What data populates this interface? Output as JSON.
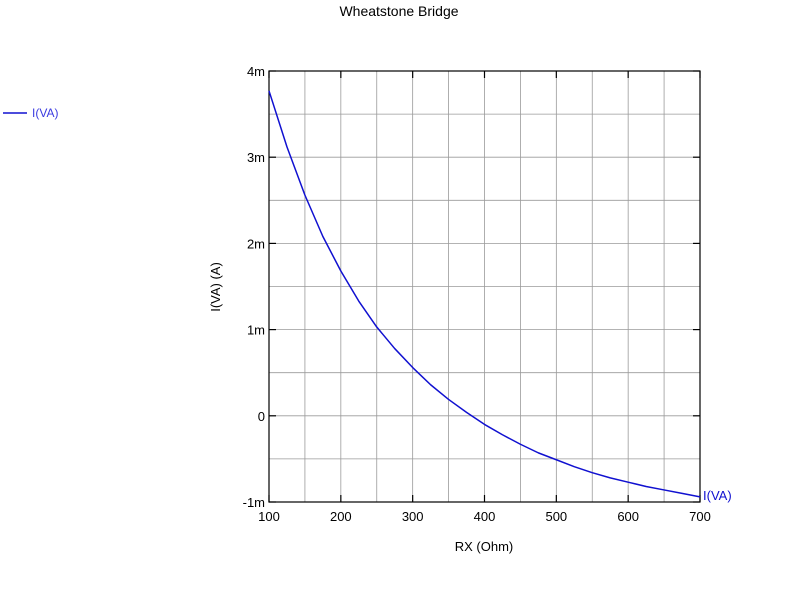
{
  "chart_data": {
    "type": "line",
    "title": "Wheatstone Bridge",
    "xlabel": "RX  (Ohm)",
    "ylabel": "I(VA)  (A)",
    "xlim": [
      100,
      700
    ],
    "ylim": [
      -0.001,
      0.004
    ],
    "xticks": [
      100,
      200,
      300,
      400,
      500,
      600,
      700
    ],
    "xtick_labels": [
      "100",
      "200",
      "300",
      "400",
      "500",
      "600",
      "700"
    ],
    "yticks": [
      -0.001,
      0,
      0.001,
      0.002,
      0.003,
      0.004
    ],
    "ytick_labels": [
      "-1m",
      "0",
      "1m",
      "2m",
      "3m",
      "4m"
    ],
    "grid": true,
    "legend": "left",
    "series": [
      {
        "name": "I(VA)",
        "color": "#1010d0",
        "x": [
          100,
          125,
          150,
          175,
          200,
          225,
          250,
          275,
          300,
          325,
          350,
          375,
          400,
          425,
          450,
          475,
          500,
          525,
          550,
          575,
          600,
          625,
          650,
          675,
          700
        ],
        "y": [
          0.00377,
          0.00312,
          0.00256,
          0.00208,
          0.00168,
          0.00133,
          0.00103,
          0.00078,
          0.00056,
          0.00036,
          0.00019,
          4e-05,
          -0.0001,
          -0.00022,
          -0.00033,
          -0.00043,
          -0.00051,
          -0.00059,
          -0.00066,
          -0.00072,
          -0.00077,
          -0.00082,
          -0.00086,
          -0.0009,
          -0.00094
        ]
      }
    ],
    "end_label": "I(VA)"
  }
}
